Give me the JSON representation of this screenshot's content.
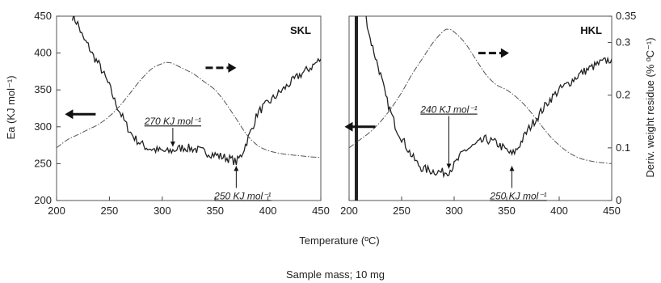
{
  "figure": {
    "xlabel": "Temperature (ºC)",
    "caption": "Sample mass; 10 mg",
    "left_ylabel": "Ea (KJ mol⁻¹)",
    "right_ylabel": "Deriv. weight residue (% ºC⁻¹)"
  },
  "chart_data": [
    {
      "type": "line",
      "title": "SKL",
      "xlim": [
        200,
        450
      ],
      "xticks": [
        200,
        250,
        300,
        350,
        400,
        450
      ],
      "ylim": [
        200,
        450
      ],
      "yticks": [
        200,
        250,
        300,
        350,
        400,
        450
      ],
      "grid": false,
      "series": [
        {
          "axis": "left",
          "style": "solid-noisy",
          "x": [
            215,
            220,
            225,
            230,
            235,
            240,
            245,
            250,
            255,
            260,
            265,
            270,
            275,
            280,
            285,
            290,
            295,
            300,
            305,
            310,
            320,
            330,
            340,
            350,
            360,
            365,
            370,
            375,
            380,
            385,
            390,
            395,
            400,
            410,
            420,
            430,
            440,
            450
          ],
          "y": [
            450,
            440,
            420,
            410,
            395,
            385,
            370,
            355,
            335,
            320,
            305,
            292,
            283,
            277,
            272,
            270,
            268,
            267,
            266,
            268,
            272,
            270,
            266,
            262,
            258,
            256,
            252,
            262,
            280,
            298,
            318,
            326,
            332,
            345,
            358,
            370,
            380,
            392
          ]
        },
        {
          "axis": "right",
          "style": "dash-dot",
          "x": [
            200,
            210,
            220,
            230,
            240,
            250,
            260,
            270,
            280,
            290,
            300,
            305,
            310,
            320,
            330,
            340,
            350,
            360,
            370,
            380,
            390,
            400,
            410,
            420,
            430,
            440,
            450
          ],
          "y": [
            0.1,
            0.115,
            0.125,
            0.135,
            0.145,
            0.16,
            0.18,
            0.205,
            0.23,
            0.25,
            0.26,
            0.262,
            0.26,
            0.25,
            0.24,
            0.225,
            0.21,
            0.185,
            0.155,
            0.125,
            0.105,
            0.095,
            0.09,
            0.087,
            0.085,
            0.083,
            0.082
          ]
        }
      ],
      "annotations": [
        {
          "text": "270 KJ mol⁻¹",
          "x": 310,
          "y": 270
        },
        {
          "text": "250 KJ mol⁻¹",
          "x": 370,
          "y": 250
        }
      ]
    },
    {
      "type": "line",
      "title": "HKL",
      "xlim": [
        200,
        450
      ],
      "xticks": [
        200,
        250,
        300,
        350,
        400,
        450
      ],
      "y2lim": [
        0,
        0.35
      ],
      "y2ticks": [
        "0",
        "0.1",
        "0.2",
        "0.3",
        "0.35"
      ],
      "grid": false,
      "series": [
        {
          "axis": "left",
          "style": "solid-noisy",
          "x": [
            216,
            220,
            225,
            230,
            235,
            240,
            245,
            250,
            255,
            260,
            265,
            270,
            280,
            290,
            295,
            300,
            310,
            320,
            330,
            340,
            350,
            355,
            360,
            370,
            380,
            390,
            400,
            410,
            420,
            430,
            440,
            450
          ],
          "y": [
            450,
            420,
            395,
            370,
            340,
            318,
            298,
            285,
            272,
            260,
            250,
            243,
            240,
            238,
            240,
            248,
            268,
            275,
            283,
            278,
            268,
            262,
            270,
            295,
            315,
            335,
            350,
            360,
            372,
            380,
            387,
            392
          ]
        },
        {
          "axis": "right",
          "style": "dash-dot",
          "x": [
            200,
            210,
            220,
            230,
            240,
            250,
            260,
            270,
            280,
            290,
            295,
            300,
            310,
            320,
            330,
            340,
            350,
            360,
            370,
            380,
            390,
            400,
            410,
            420,
            430,
            440,
            450
          ],
          "y": [
            0.1,
            0.115,
            0.13,
            0.15,
            0.175,
            0.205,
            0.24,
            0.27,
            0.3,
            0.322,
            0.325,
            0.32,
            0.3,
            0.27,
            0.24,
            0.22,
            0.21,
            0.195,
            0.175,
            0.15,
            0.125,
            0.105,
            0.09,
            0.08,
            0.075,
            0.072,
            0.07
          ]
        }
      ],
      "annotations": [
        {
          "text": "240 KJ mol⁻¹",
          "x": 295,
          "y": 240
        },
        {
          "text": "250 KJ mol⁻¹",
          "x": 355,
          "y": 250
        }
      ]
    }
  ]
}
